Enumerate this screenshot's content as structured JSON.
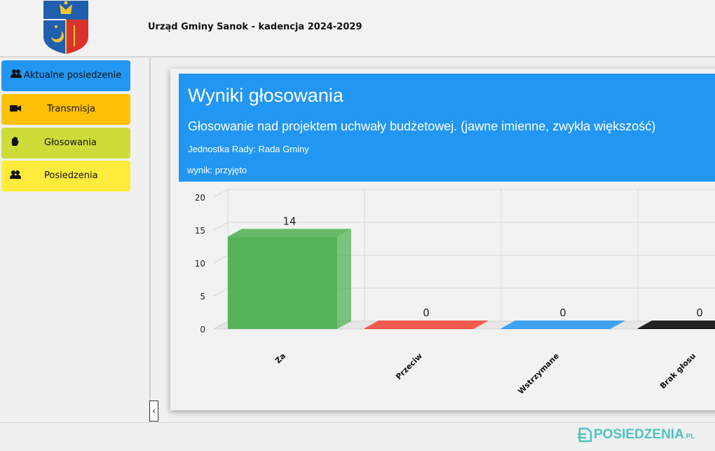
{
  "header": {
    "title": "Urząd Gminy Sanok - kadencja 2024-2029"
  },
  "sidebar": {
    "items": [
      {
        "label": "Aktualne posiedzenie",
        "icon": "users-icon",
        "color": "#2196f3"
      },
      {
        "label": "Transmisja",
        "icon": "video-camera-icon",
        "color": "#ffc107"
      },
      {
        "label": "Głosowania",
        "icon": "hand-icon",
        "color": "#cddc39"
      },
      {
        "label": "Posiedzenia",
        "icon": "users-icon",
        "color": "#ffeb3b"
      }
    ],
    "collapse_label": "‹"
  },
  "card": {
    "title": "Wyniki głosowania",
    "subject": "Głosowanie nad projektem uchwały budżetowej.  (jawne imienne, zwykła większość)",
    "unit": "Jednostka Rady: Rada Gminy",
    "result": "wynik: przyjęto"
  },
  "chart_data": {
    "type": "bar",
    "categories": [
      "Za",
      "Przeciw",
      "Wstrzymane",
      "Brak głosu"
    ],
    "values": [
      14,
      0,
      0,
      0
    ],
    "colors": [
      "#4caf50",
      "#f44336",
      "#2196f3",
      "#000000"
    ],
    "ylim": [
      0,
      20
    ],
    "yticks": [
      0,
      5,
      10,
      15,
      20
    ],
    "grid": true
  },
  "footer": {
    "brand_main": "POSIEDZENIA",
    "brand_suffix": ".PL"
  }
}
